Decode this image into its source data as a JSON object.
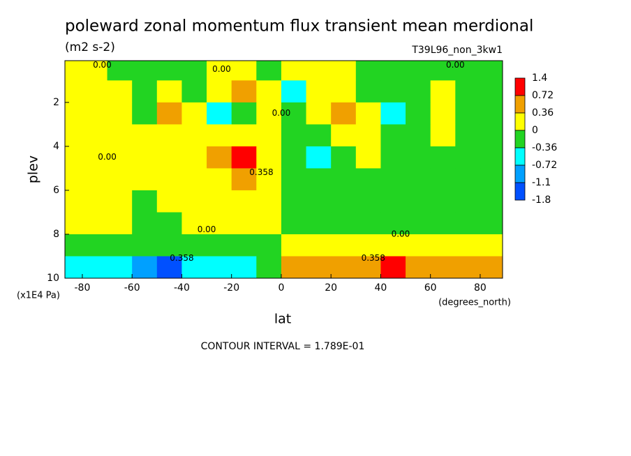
{
  "chart_data": {
    "type": "contour",
    "title": "poleward zonal momentum flux transient mean merdional",
    "subtitle": "(m2 s-2)",
    "run_label": "T39L96_non_3kw1",
    "x_label": "lat",
    "x_units": "(degrees_north)",
    "y_label": "plev",
    "y_units": "(x1E4 Pa)",
    "footer": "CONTOUR INTERVAL = 1.789E-01",
    "xlim": [
      -87,
      89
    ],
    "ylim": [
      10,
      0.1
    ],
    "xticks": [
      -80,
      -60,
      -40,
      -20,
      0,
      20,
      40,
      60,
      80
    ],
    "yticks": [
      2,
      4,
      6,
      8,
      10
    ],
    "x": [
      -85,
      -75,
      -65,
      -55,
      -45,
      -35,
      -25,
      -15,
      -5,
      5,
      15,
      25,
      35,
      45,
      55,
      65,
      75,
      85
    ],
    "y": [
      0.5,
      1.5,
      2.5,
      3.5,
      4.5,
      5.5,
      6.5,
      7.5,
      8.5,
      9.5
    ],
    "z": [
      [
        0.1,
        0.1,
        -0.1,
        -0.1,
        -0.1,
        -0.1,
        0.1,
        0.1,
        -0.1,
        0.1,
        0.1,
        0.1,
        -0.1,
        -0.1,
        -0.1,
        -0.1,
        -0.1,
        -0.1
      ],
      [
        0.1,
        0.1,
        0.1,
        -0.1,
        0.1,
        -0.1,
        0.1,
        0.5,
        0.1,
        -0.4,
        0.1,
        0.1,
        -0.1,
        -0.1,
        -0.1,
        0.1,
        -0.1,
        -0.1
      ],
      [
        0.1,
        0.1,
        0.1,
        -0.1,
        0.4,
        0.1,
        -0.4,
        -0.2,
        0.1,
        -0.3,
        0.1,
        0.4,
        0.1,
        -0.4,
        -0.1,
        0.1,
        -0.1,
        -0.1
      ],
      [
        0.1,
        0.1,
        0.1,
        0.1,
        0.1,
        0.1,
        0.1,
        0.1,
        0.1,
        -0.1,
        -0.1,
        0.1,
        0.1,
        -0.1,
        -0.1,
        0.1,
        -0.1,
        -0.1
      ],
      [
        0.1,
        0.1,
        0.1,
        0.1,
        0.1,
        0.1,
        0.4,
        0.8,
        0.1,
        -0.1,
        -0.4,
        -0.1,
        0.1,
        -0.1,
        -0.1,
        -0.1,
        -0.1,
        -0.1
      ],
      [
        0.1,
        0.1,
        0.1,
        0.1,
        0.1,
        0.1,
        0.1,
        0.4,
        0.1,
        -0.1,
        -0.1,
        -0.1,
        -0.1,
        -0.1,
        -0.1,
        -0.1,
        -0.1,
        -0.1
      ],
      [
        0.1,
        0.1,
        0.1,
        -0.1,
        0.1,
        0.1,
        0.1,
        0.1,
        0.1,
        -0.1,
        -0.1,
        -0.1,
        -0.1,
        -0.1,
        -0.1,
        -0.1,
        -0.1,
        -0.1
      ],
      [
        0.1,
        0.1,
        0.1,
        -0.1,
        -0.1,
        0.1,
        0.1,
        0.1,
        0.1,
        -0.1,
        -0.1,
        -0.1,
        -0.1,
        -0.1,
        -0.1,
        -0.1,
        -0.1,
        -0.1
      ],
      [
        -0.1,
        -0.1,
        -0.1,
        -0.1,
        -0.1,
        -0.1,
        -0.1,
        -0.1,
        -0.1,
        0.1,
        0.1,
        0.1,
        0.1,
        0.1,
        0.1,
        0.1,
        0.1,
        0.1
      ],
      [
        -0.4,
        -0.4,
        -0.4,
        -0.8,
        -1.2,
        -0.4,
        -0.4,
        -0.4,
        -0.1,
        0.4,
        0.4,
        0.4,
        0.4,
        0.8,
        0.4,
        0.4,
        0.4,
        0.4
      ]
    ],
    "levels": [
      1.4,
      0.72,
      0.36,
      0,
      -0.36,
      -0.72,
      -1.1,
      -1.8
    ],
    "colors": [
      "#ff0000",
      "#f0a000",
      "#ffff00",
      "#22d422",
      "#00ffff",
      "#00a0ff",
      "#0050ff"
    ],
    "annotations": [
      {
        "text": "0.00",
        "x": -72,
        "y": 0.3
      },
      {
        "text": "0.00",
        "x": -24,
        "y": 0.5
      },
      {
        "text": "0.00",
        "x": 70,
        "y": 0.3
      },
      {
        "text": "0.00",
        "x": -70,
        "y": 4.5
      },
      {
        "text": "0.00",
        "x": -30,
        "y": 7.8
      },
      {
        "text": "0.00",
        "x": 0,
        "y": 2.5
      },
      {
        "text": "0.358",
        "x": -8,
        "y": 5.2
      },
      {
        "text": "0.358",
        "x": -40,
        "y": 9.1
      },
      {
        "text": "0.358",
        "x": 37,
        "y": 9.1
      },
      {
        "text": "0.00",
        "x": 48,
        "y": 8.0
      }
    ]
  }
}
